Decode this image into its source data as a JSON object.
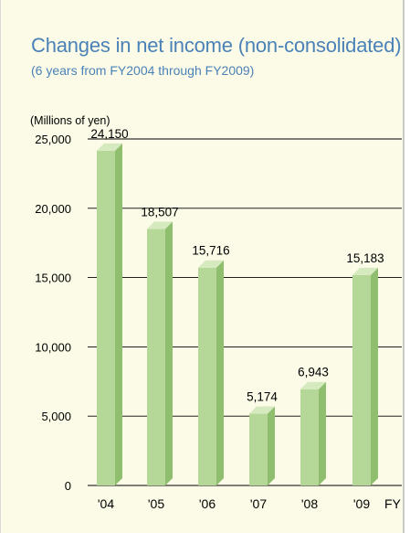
{
  "title": "Changes in net income (non-consolidated)",
  "subtitle": "(6 years from FY2004 through FY2009)",
  "unit_label": "(Millions of yen)",
  "x_suffix": "FY",
  "colors": {
    "title": "#4a82b8",
    "bar_front": "#b5d898",
    "bar_side": "#8fbf6e",
    "bar_top": "#d6eabf",
    "background": "#fcfbe7",
    "gridline": "#000000"
  },
  "chart_data": {
    "type": "bar",
    "title": "Changes in net income (non-consolidated)",
    "subtitle": "(6 years from FY2004 through FY2009)",
    "ylabel": "(Millions of yen)",
    "xlabel": "FY",
    "categories": [
      "'04",
      "'05",
      "'06",
      "'07",
      "'08",
      "'09"
    ],
    "values": [
      24150,
      18507,
      15716,
      5174,
      6943,
      15183
    ],
    "value_labels": [
      "24,150",
      "18,507",
      "15,716",
      "5,174",
      "6,943",
      "15,183"
    ],
    "yticks": [
      0,
      5000,
      10000,
      15000,
      20000,
      25000
    ],
    "ytick_labels": [
      "0",
      "5,000",
      "10,000",
      "15,000",
      "20,000",
      "25,000"
    ],
    "ylim": [
      0,
      25000
    ],
    "grid": true,
    "bar_style": "3d"
  }
}
